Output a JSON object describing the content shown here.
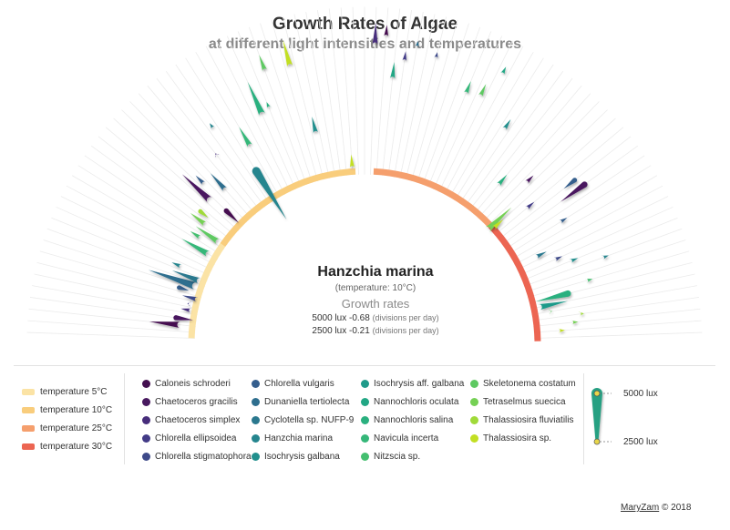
{
  "title": "Growth Rates of Algae",
  "subtitle": "at different light intensities and temperatures",
  "info": {
    "species": "Hanzchia marina",
    "temperature": "(temperature: 10°C)",
    "heading": "Growth rates",
    "rate_5000": {
      "label": "5000 lux",
      "value": "-0.68",
      "unit": "(divisions per day)"
    },
    "rate_2500": {
      "label": "2500 lux",
      "value": "-0.21",
      "unit": "(divisions per day)"
    }
  },
  "legend": {
    "temperatures": [
      {
        "label": "temperature 5°C",
        "color": "#fbe3a5"
      },
      {
        "label": "temperature 10°C",
        "color": "#f9cd7c"
      },
      {
        "label": "temperature 25°C",
        "color": "#f59f6d"
      },
      {
        "label": "temperature 30°C",
        "color": "#ec6552"
      }
    ],
    "species": [
      {
        "label": "Caloneis schroderi",
        "color": "#441050"
      },
      {
        "label": "Chaetoceros gracilis",
        "color": "#48195f"
      },
      {
        "label": "Chaetoceros simplex",
        "color": "#472d7b"
      },
      {
        "label": "Chlorella ellipsoidea",
        "color": "#433b87"
      },
      {
        "label": "Chlorella stigmatophora",
        "color": "#3e4a89"
      },
      {
        "label": "Chlorella vulgaris",
        "color": "#355e8d"
      },
      {
        "label": "Dunaniella tertiolecta",
        "color": "#2e6e8e"
      },
      {
        "label": "Cyclotella sp. NUFP-9",
        "color": "#2a788e"
      },
      {
        "label": "Hanzchia marina",
        "color": "#25858e"
      },
      {
        "label": "Isochrysis galbana",
        "color": "#218f8d"
      },
      {
        "label": "Isochrysis aff. galbana",
        "color": "#1f9a8a"
      },
      {
        "label": "Nannochloris oculata",
        "color": "#22a785"
      },
      {
        "label": "Nannochloris salina",
        "color": "#2ab07f"
      },
      {
        "label": "Navicula incerta",
        "color": "#35b779"
      },
      {
        "label": "Nitzscia sp.",
        "color": "#44bf70"
      },
      {
        "label": "Skeletonema costatum",
        "color": "#5ec962"
      },
      {
        "label": "Tetraselmus suecica",
        "color": "#75d054"
      },
      {
        "label": "Thalassiosira fluviatilis",
        "color": "#a0da39"
      },
      {
        "label": "Thalassiosira sp.",
        "color": "#c2df23"
      }
    ],
    "lux": {
      "high": "5000 lux",
      "low": "2500 lux",
      "marker_color": "#27a082"
    }
  },
  "credit": {
    "name": "MaryZam",
    "rest": " © 2018"
  },
  "chart_data": {
    "type": "radial-bar",
    "title": "Growth Rates of Algae",
    "subtitle": "at different light intensities and temperatures",
    "arc_span_degrees": [
      -90,
      90
    ],
    "temperature_segments": [
      {
        "label": "temperature 5°C",
        "from_deg": -88,
        "to_deg": -55
      },
      {
        "label": "temperature 10°C",
        "from_deg": -55,
        "to_deg": -3
      },
      {
        "label": "temperature 25°C",
        "from_deg": 3,
        "to_deg": 47
      },
      {
        "label": "temperature 30°C",
        "from_deg": 47,
        "to_deg": 89
      }
    ],
    "highlight": {
      "species": "Hanzchia marina",
      "temperature": "10°C",
      "rate_5000": -0.68,
      "rate_2500": -0.21
    },
    "note": "Each mark runs from the 2500 lux growth rate (r1) to the 5000 lux rate (r2), in normalised radius units along the species angle (deg).",
    "marks": [
      {
        "deg": -84,
        "species": "Caloneis schroderi",
        "r1": 1.07,
        "r2": 1.25
      },
      {
        "deg": -82,
        "species": "Chaetoceros gracilis",
        "r1": 1.1,
        "r2": 1.0
      },
      {
        "deg": -79,
        "species": "Chaetoceros simplex",
        "r1": 1.02,
        "r2": 1.08
      },
      {
        "deg": -77,
        "species": "Chlorella ellipsoidea",
        "r1": 1.03,
        "r2": 1.05
      },
      {
        "deg": -75,
        "species": "Chlorella stigmatophora",
        "r1": 1.0,
        "r2": 1.09
      },
      {
        "deg": -73,
        "species": "Chlorella vulgaris",
        "r1": 1.12,
        "r2": 1.06
      },
      {
        "deg": -71,
        "species": "Dunaniella tertiolecta",
        "r1": 1.03,
        "r2": 1.32
      },
      {
        "deg": -69,
        "species": "Cyclotella sp. NUFP-9",
        "r1": 1.02,
        "r2": 1.19
      },
      {
        "deg": -67,
        "species": "Hanzchia marina",
        "r1": 1.15,
        "r2": 1.21
      },
      {
        "deg": -60,
        "species": "Navicula incerta",
        "r1": 1.04,
        "r2": 1.22
      },
      {
        "deg": -57,
        "species": "Nitzscia sp.",
        "r1": 1.13,
        "r2": 1.2
      },
      {
        "deg": -55,
        "species": "Skeletonema costatum",
        "r1": 1.03,
        "r2": 1.19
      },
      {
        "deg": -53,
        "species": "Tetraselmus suecica",
        "r1": 1.15,
        "r2": 1.26
      },
      {
        "deg": -51,
        "species": "Thalassiosira fluviatilis",
        "r1": 1.22,
        "r2": 1.16
      },
      {
        "deg": -47,
        "species": "Chaetoceros gracilis",
        "r1": 1.22,
        "r2": 1.44
      },
      {
        "deg": -46,
        "species": "Caloneis schroderi",
        "r1": 1.11,
        "r2": 1.01
      },
      {
        "deg": -45,
        "species": "Chlorella vulgaris",
        "r1": 1.31,
        "r2": 1.38
      },
      {
        "deg": -42,
        "species": "Dunaniella tertiolecta",
        "r1": 1.2,
        "r2": 1.33
      },
      {
        "deg": -38,
        "species": "Chaetoceros simplex",
        "r1": 1.38,
        "r2": 1.4
      },
      {
        "deg": -35,
        "species": "Hanzchia marina",
        "r1": 1.52,
        "r2": 1.56
      },
      {
        "deg": -32,
        "species": "Hanzchia marina",
        "r1": 1.18,
        "r2": 0.85
      },
      {
        "deg": -30,
        "species": "Navicula incerta",
        "r1": 1.32,
        "r2": 1.45
      },
      {
        "deg": -24,
        "species": "Nannochloris salina",
        "r1": 1.45,
        "r2": 1.66
      },
      {
        "deg": -22,
        "species": "Nannochloris salina",
        "r1": 1.47,
        "r2": 1.51
      },
      {
        "deg": -20,
        "species": "Skeletonema costatum",
        "r1": 1.68,
        "r2": 1.78
      },
      {
        "deg": -15,
        "species": "Thalassiosira sp.",
        "r1": 1.66,
        "r2": 1.82
      },
      {
        "deg": -13,
        "species": "Isochrysis galbana",
        "r1": 1.25,
        "r2": 1.35
      },
      {
        "deg": -4,
        "species": "Thalassiosira sp.",
        "r1": 1.02,
        "r2": 1.1
      },
      {
        "deg": 2,
        "species": "Chaetoceros simplex",
        "r1": 1.73,
        "r2": 1.86
      },
      {
        "deg": 4,
        "species": "Caloneis schroderi",
        "r1": 1.78,
        "r2": 1.85
      },
      {
        "deg": 6,
        "species": "Nannochloris oculata",
        "r1": 1.54,
        "r2": 1.64
      },
      {
        "deg": 8,
        "species": "Chlorella ellipsoidea",
        "r1": 1.65,
        "r2": 1.71
      },
      {
        "deg": 10,
        "species": "Dunaniella tertiolecta",
        "r1": 1.74,
        "r2": 1.78
      },
      {
        "deg": 14,
        "species": "Chlorella stigmatophora",
        "r1": 1.7,
        "r2": 1.74
      },
      {
        "deg": 22,
        "species": "Navicula incerta",
        "r1": 1.56,
        "r2": 1.64
      },
      {
        "deg": 25,
        "species": "Skeletonema costatum",
        "r1": 1.58,
        "r2": 1.66
      },
      {
        "deg": 27,
        "species": "Nannochloris oculata",
        "r1": 1.75,
        "r2": 1.8
      },
      {
        "deg": 33,
        "species": "Isochrysis galbana",
        "r1": 1.48,
        "r2": 1.55
      },
      {
        "deg": 40,
        "species": "Nannochloris salina",
        "r1": 1.2,
        "r2": 1.28
      },
      {
        "deg": 45,
        "species": "Chaetoceros gracilis",
        "r1": 1.32,
        "r2": 1.38
      },
      {
        "deg": 47,
        "species": "Tetraselmus suecica",
        "r1": 0.97,
        "r2": 1.16
      },
      {
        "deg": 48,
        "species": "Thalassiosira sp.",
        "r1": 1.0,
        "r2": 1.08
      },
      {
        "deg": 50,
        "species": "Chlorella ellipsoidea",
        "r1": 1.22,
        "r2": 1.28
      },
      {
        "deg": 52,
        "species": "Chlorella vulgaris",
        "r1": 1.54,
        "r2": 1.46
      },
      {
        "deg": 54,
        "species": "Chaetoceros gracilis",
        "r1": 1.57,
        "r2": 1.4
      },
      {
        "deg": 58,
        "species": "Chlorella vulgaris",
        "r1": 1.33,
        "r2": 1.38
      },
      {
        "deg": 63,
        "species": "Cyclotella sp. NUFP-9",
        "r1": 1.11,
        "r2": 1.18
      },
      {
        "deg": 66,
        "species": "Chlorella stigmatophora",
        "r1": 1.2,
        "r2": 1.25
      },
      {
        "deg": 68,
        "species": "Isochrysis galbana",
        "r1": 1.28,
        "r2": 1.33
      },
      {
        "deg": 70,
        "species": "Hanzchia marina",
        "r1": 1.46,
        "r2": 1.5
      },
      {
        "deg": 74,
        "species": "Nitzscia sp.",
        "r1": 1.33,
        "r2": 1.37
      },
      {
        "deg": 76,
        "species": "Nannochloris salina",
        "r1": 1.21,
        "r2": 1.02
      },
      {
        "deg": 78,
        "species": "Isochrysis aff. galbana",
        "r1": 1.03,
        "r2": 1.2
      },
      {
        "deg": 80,
        "species": "Skeletonema costatum",
        "r1": 1.08,
        "r2": 1.1
      },
      {
        "deg": 82,
        "species": "Thalassiosira fluviatilis",
        "r1": 1.25,
        "r2": 1.28
      },
      {
        "deg": 84,
        "species": "Tetraselmus suecica",
        "r1": 1.2,
        "r2": 1.24
      },
      {
        "deg": 86,
        "species": "Thalassiosira sp.",
        "r1": 1.12,
        "r2": 1.16
      }
    ]
  }
}
